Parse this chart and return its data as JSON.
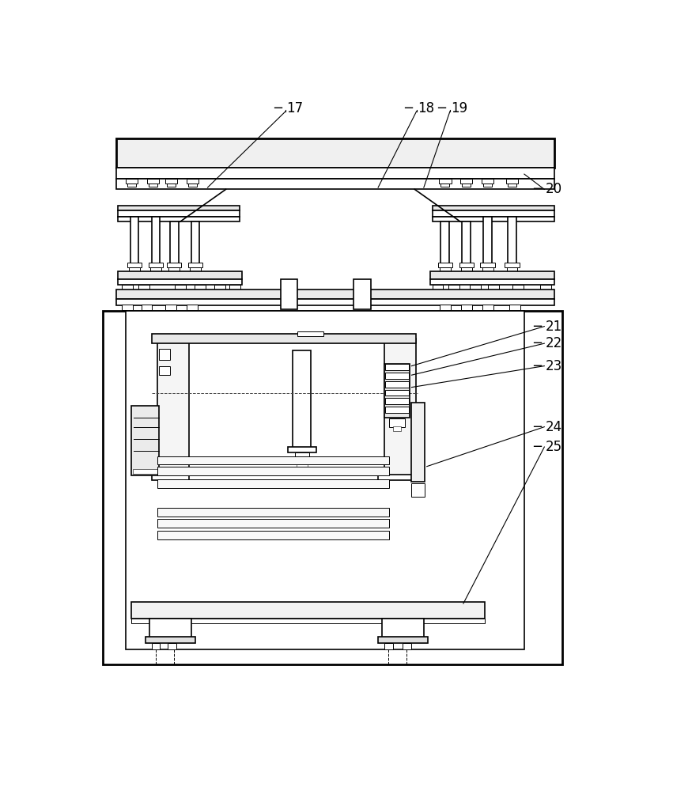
{
  "bg_color": "#ffffff",
  "lw_thick": 2.0,
  "lw_med": 1.2,
  "lw_thin": 0.7,
  "lw_vthin": 0.4,
  "fig_width": 8.51,
  "fig_height": 10.0,
  "label_fontsize": 12
}
